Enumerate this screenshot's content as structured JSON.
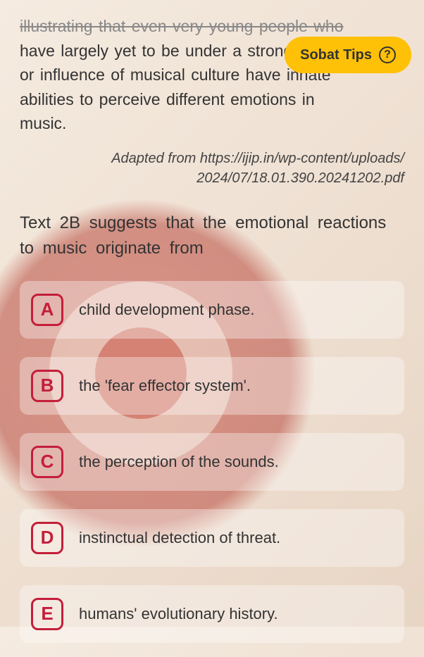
{
  "passage": {
    "line1_struck": "illustrating that even very young people who",
    "line2": "have largely yet to be under a strong effect",
    "line3": "or influence of musical culture have innate",
    "line4": "abilities to perceive different emotions in",
    "line5": "music."
  },
  "citation": {
    "line1": "Adapted from https://ijip.in/wp-content/uploads/",
    "line2": "2024/07/18.01.390.20241202.pdf"
  },
  "question": {
    "text": "Text 2B suggests that the emotional reactions to music originate from"
  },
  "options": [
    {
      "letter": "A",
      "text": "child development phase."
    },
    {
      "letter": "B",
      "text": "the 'fear effector system'."
    },
    {
      "letter": "C",
      "text": "the perception of the sounds."
    },
    {
      "letter": "D",
      "text": "instinctual detection of threat."
    },
    {
      "letter": "E",
      "text": "humans' evolutionary history."
    }
  ],
  "sobat_tips": {
    "label": "Sobat Tips",
    "help_symbol": "?"
  },
  "colors": {
    "accent": "#c41e3a",
    "pill": "#ffc107"
  }
}
